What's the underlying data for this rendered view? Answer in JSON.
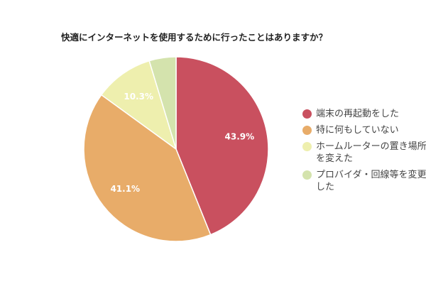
{
  "chart_data": {
    "type": "pie",
    "title": "快適にインターネットを使用するために行ったことはありますか？",
    "slices": [
      {
        "label": "端末の再起動をした",
        "value": 43.9,
        "data_label": "43.9%",
        "color": "#c9505f"
      },
      {
        "label": "特に何もしていない",
        "value": 41.1,
        "data_label": "41.1%",
        "color": "#e8ac69"
      },
      {
        "label": "ホームルーターの置き場所を変えた",
        "value": 10.3,
        "data_label": "10.3%",
        "color": "#eeefae"
      },
      {
        "label": "プロバイダ・回線等を変更した",
        "value": 4.7,
        "data_label": "",
        "color": "#d4e3ad"
      }
    ],
    "start_angle": "12 o'clock",
    "direction": "clockwise",
    "legend_position": "right"
  }
}
